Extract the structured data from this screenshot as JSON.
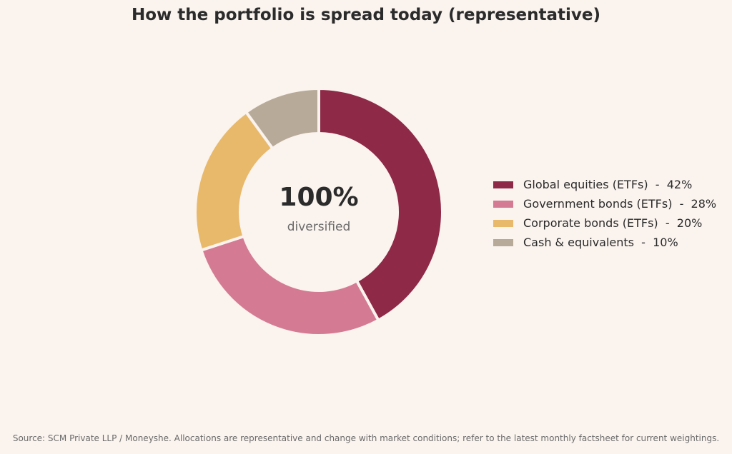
{
  "chart_data": {
    "type": "pie",
    "title": "How the portfolio is spread today (representative)",
    "center_value": "100%",
    "center_caption": "diversified",
    "legend_position": "right",
    "slices": [
      {
        "label": "Global equities (ETFs)",
        "value": 42,
        "legend_text": "Global equities (ETFs)  -  42%",
        "color": "#8e2947"
      },
      {
        "label": "Government bonds (ETFs)",
        "value": 28,
        "legend_text": "Government bonds (ETFs)  -  28%",
        "color": "#d47b93"
      },
      {
        "label": "Corporate bonds (ETFs)",
        "value": 20,
        "legend_text": "Corporate bonds (ETFs)  -  20%",
        "color": "#e8b96b"
      },
      {
        "label": "Cash & equivalents",
        "value": 10,
        "legend_text": "Cash & equivalents  -  10%",
        "color": "#b8aa98"
      }
    ],
    "source": "Source: SCM Private LLP / Moneyshe. Allocations are representative and change with market conditions; refer to the latest monthly factsheet for current weightings."
  }
}
